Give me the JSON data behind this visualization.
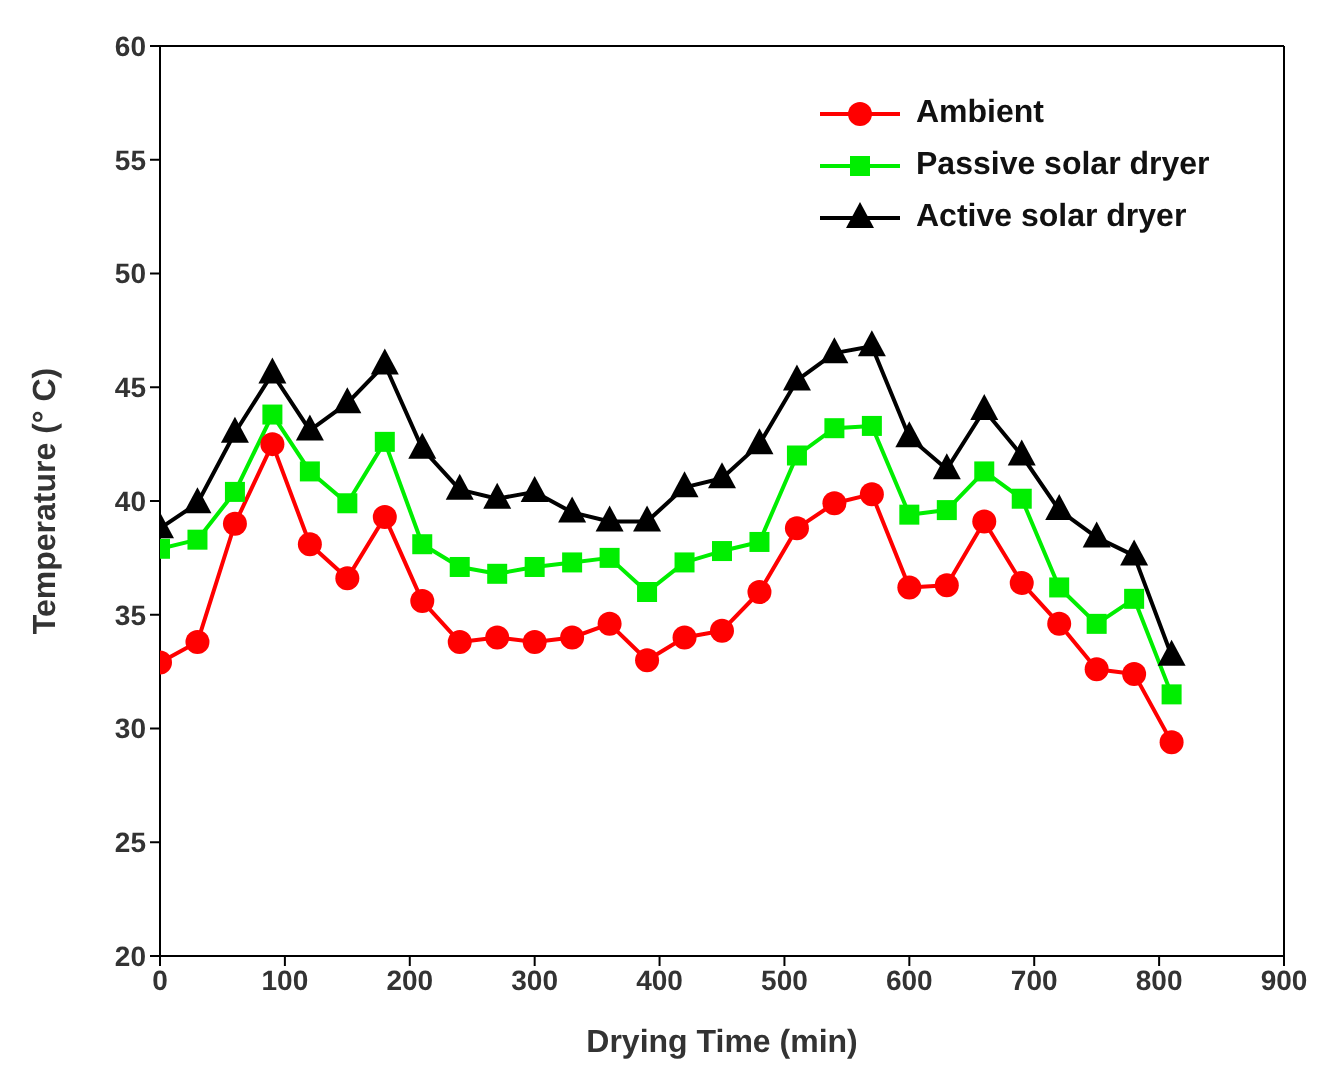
{
  "chart_data": {
    "type": "line",
    "xlabel": "Drying Time (min)",
    "ylabel": "Temperature (° C)",
    "x": [
      0,
      30,
      60,
      90,
      120,
      150,
      180,
      210,
      240,
      270,
      300,
      330,
      360,
      390,
      420,
      450,
      480,
      510,
      540,
      570,
      600,
      630,
      660,
      690,
      720,
      750,
      780,
      810
    ],
    "xlim": [
      0,
      900
    ],
    "xticks": [
      0,
      100,
      200,
      300,
      400,
      500,
      600,
      700,
      800,
      900
    ],
    "ylim": [
      20,
      60
    ],
    "yticks": [
      20,
      25,
      30,
      35,
      40,
      45,
      50,
      55,
      60
    ],
    "grid": false,
    "legend": "top right",
    "line_style": "solid",
    "series": [
      {
        "name": "Ambient",
        "color": "#ff0000",
        "marker": "circle",
        "values": [
          32.9,
          33.8,
          39.0,
          42.5,
          38.1,
          36.6,
          39.3,
          35.6,
          33.8,
          34.0,
          33.8,
          34.0,
          34.6,
          33.0,
          34.0,
          34.3,
          36.0,
          38.8,
          39.9,
          40.3,
          36.2,
          36.3,
          39.1,
          36.4,
          34.6,
          32.6,
          32.4,
          29.4
        ]
      },
      {
        "name": "Passive solar dryer",
        "color": "#00ee00",
        "marker": "square",
        "values": [
          37.9,
          38.3,
          40.4,
          43.8,
          41.3,
          39.9,
          42.6,
          38.1,
          37.1,
          36.8,
          37.1,
          37.3,
          37.5,
          36.0,
          37.3,
          37.8,
          38.2,
          42.0,
          43.2,
          43.3,
          39.4,
          39.6,
          41.3,
          40.1,
          36.2,
          34.6,
          35.7,
          31.5
        ]
      },
      {
        "name": "Active solar dryer",
        "color": "#000000",
        "marker": "triangle",
        "values": [
          38.8,
          39.9,
          43.0,
          45.6,
          43.1,
          44.3,
          46.0,
          42.3,
          40.5,
          40.1,
          40.4,
          39.5,
          39.1,
          39.1,
          40.6,
          41.0,
          42.5,
          45.3,
          46.5,
          46.8,
          42.8,
          41.4,
          44.0,
          42.0,
          39.6,
          38.4,
          37.6,
          33.2
        ]
      }
    ]
  }
}
